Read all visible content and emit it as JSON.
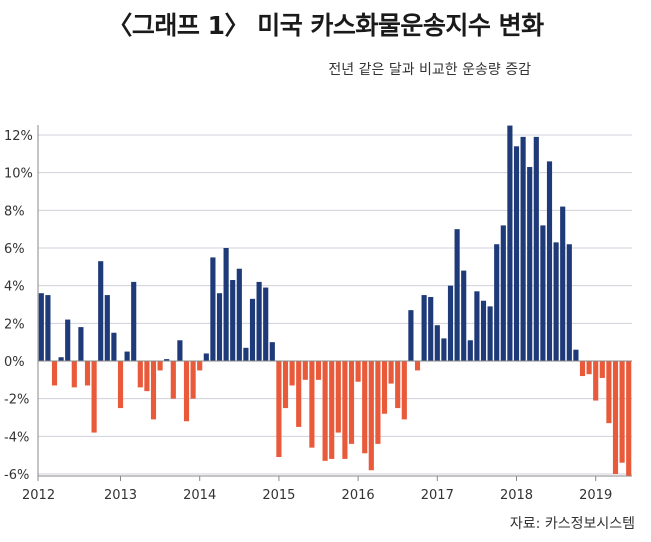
{
  "title": "〈그래프 1〉 미국 카스화물운송지수 변화",
  "subtitle": "전년 같은 달과 비교한 운송량 증감",
  "source": "자료: 카스정보시스템",
  "colors": {
    "positive": "#1f3a78",
    "negative": "#e85a3a",
    "grid": "#d0d0dc",
    "axis": "#888888"
  },
  "chart_data": {
    "type": "bar",
    "title": "〈그래프 1〉 미국 카스화물운송지수 변화",
    "subtitle": "전년 같은 달과 비교한 운송량 증감",
    "xlabel": "",
    "ylabel": "",
    "ylim": [
      -6,
      13
    ],
    "yticks": [
      -6,
      -4,
      -2,
      0,
      2,
      4,
      6,
      8,
      10,
      12
    ],
    "ytick_labels": [
      "-6%",
      "-4%",
      "-2%",
      "0%",
      "2%",
      "4%",
      "6%",
      "8%",
      "10%",
      "12%"
    ],
    "xtick_labels": [
      "2012",
      "2013",
      "2014",
      "2015",
      "2016",
      "2017",
      "2018",
      "2019"
    ],
    "grid": true,
    "series": [
      {
        "values": [
          3.6,
          3.5,
          -1.3,
          0.2,
          2.2,
          -1.4,
          1.8,
          -1.3,
          -3.8,
          5.3,
          3.5,
          1.5,
          -2.5,
          0.5,
          4.2,
          -1.4,
          -1.6,
          -3.1,
          -0.5,
          0.1,
          -2.0,
          1.1,
          -3.2,
          -2.0,
          -0.5,
          0.4,
          5.5,
          3.6,
          6.0,
          4.3,
          4.9,
          0.7,
          3.3,
          4.2,
          3.9,
          1.0,
          -5.1,
          -2.5,
          -1.3,
          -3.5,
          -1.0,
          -4.6,
          -1.0,
          -5.3,
          -5.2,
          -3.8,
          -5.2,
          -4.4,
          -1.1,
          -4.9,
          -5.8,
          -4.4,
          -2.8,
          -1.2,
          -2.5,
          -3.1,
          2.7,
          -0.5,
          3.5,
          3.4,
          1.9,
          1.2,
          4.0,
          7.0,
          4.8,
          1.1,
          3.7,
          3.2,
          2.9,
          6.2,
          7.2,
          12.5,
          11.4,
          11.9,
          10.3,
          11.9,
          7.2,
          10.6,
          6.3,
          8.2,
          6.2,
          0.6,
          -0.8,
          -0.7,
          -2.1,
          -0.9,
          -3.3,
          -6.0,
          -5.4,
          -6.1
        ]
      }
    ]
  }
}
